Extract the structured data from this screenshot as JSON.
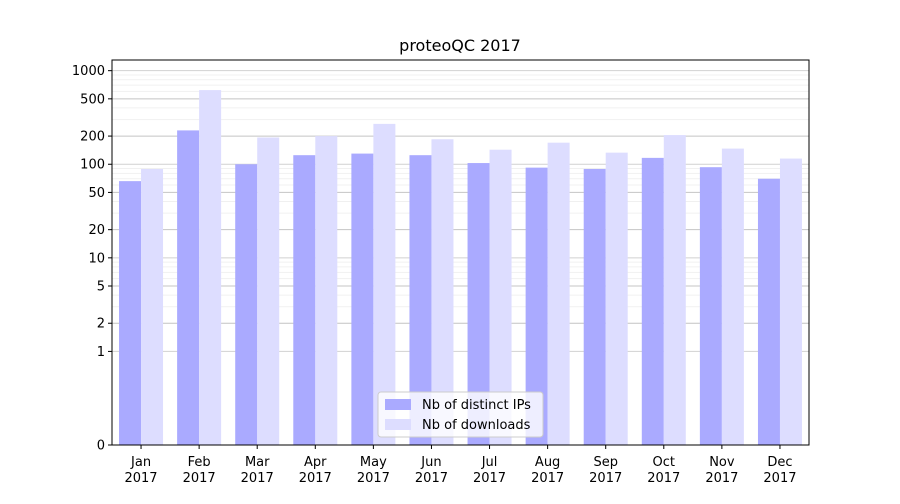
{
  "chart_data": {
    "type": "bar",
    "title": "proteoQC 2017",
    "xlabel": "",
    "ylabel": "",
    "yscale": "symlog",
    "ylim": [
      0,
      1300
    ],
    "y_ticks": [
      0,
      1,
      2,
      5,
      10,
      20,
      50,
      100,
      200,
      500,
      1000
    ],
    "y_tick_labels": [
      "0",
      "1",
      "2",
      "5",
      "10",
      "20",
      "50",
      "100",
      "200",
      "500",
      "1000"
    ],
    "grid": true,
    "legend_position": "bottom-center",
    "categories": [
      "Jan\n2017",
      "Feb\n2017",
      "Mar\n2017",
      "Apr\n2017",
      "May\n2017",
      "Jun\n2017",
      "Jul\n2017",
      "Aug\n2017",
      "Sep\n2017",
      "Oct\n2017",
      "Nov\n2017",
      "Dec\n2017"
    ],
    "series": [
      {
        "name": "Nb of distinct IPs",
        "color": "#aaaaff",
        "values": [
          66,
          230,
          100,
          125,
          130,
          125,
          103,
          92,
          89,
          117,
          93,
          70
        ]
      },
      {
        "name": "Nb of downloads",
        "color": "#ddddff",
        "values": [
          89,
          620,
          193,
          200,
          270,
          185,
          143,
          170,
          133,
          205,
          147,
          115
        ]
      }
    ]
  }
}
